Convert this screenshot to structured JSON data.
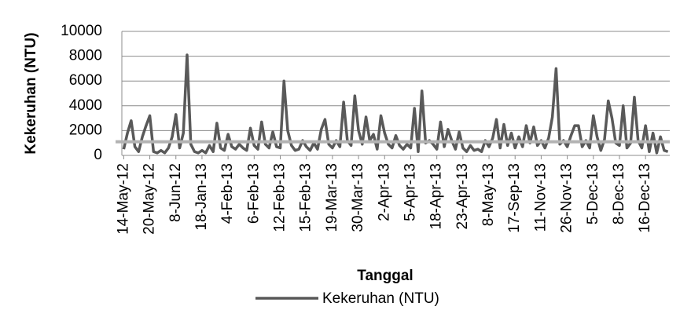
{
  "chart_data": {
    "type": "line",
    "y_label": "Kekeruhan (NTU)",
    "x_label": "Tanggal",
    "categories": [
      "14-May-12",
      null,
      null,
      null,
      null,
      null,
      null,
      "20-May-12",
      null,
      null,
      null,
      null,
      null,
      null,
      "8-Jun-12",
      null,
      null,
      null,
      null,
      null,
      null,
      "18-Jan-13",
      null,
      null,
      null,
      null,
      null,
      null,
      "4-Feb-13",
      null,
      null,
      null,
      null,
      null,
      null,
      "6-Feb-13",
      null,
      null,
      null,
      null,
      null,
      null,
      "12-Feb-13",
      null,
      null,
      null,
      null,
      null,
      null,
      "15-Feb-13",
      null,
      null,
      null,
      null,
      null,
      null,
      "19-Mar-13",
      null,
      null,
      null,
      null,
      null,
      null,
      "30-Mar-13",
      null,
      null,
      null,
      null,
      null,
      null,
      "2-Apr-13",
      null,
      null,
      null,
      null,
      null,
      null,
      "5-Apr-13",
      null,
      null,
      null,
      null,
      null,
      null,
      "18-Apr-13",
      null,
      null,
      null,
      null,
      null,
      null,
      "23-Apr-13",
      null,
      null,
      null,
      null,
      null,
      null,
      "8-May-13",
      null,
      null,
      null,
      null,
      null,
      null,
      "17-Sep-13",
      null,
      null,
      null,
      null,
      null,
      null,
      "11-Nov-13",
      null,
      null,
      null,
      null,
      null,
      null,
      "26-Nov-13",
      null,
      null,
      null,
      null,
      null,
      null,
      "5-Dec-13",
      null,
      null,
      null,
      null,
      null,
      null,
      "8-Dec-13",
      null,
      null,
      null,
      null,
      null,
      null,
      "16-Dec-13",
      null,
      null,
      null,
      null,
      null,
      null
    ],
    "series": [
      {
        "name": "Kekeruhan (NTU)",
        "color": "#595959",
        "values": [
          500,
          1800,
          2800,
          700,
          300,
          1500,
          2400,
          3200,
          300,
          200,
          400,
          200,
          600,
          1500,
          3300,
          600,
          1800,
          8100,
          900,
          300,
          200,
          400,
          200,
          800,
          300,
          2600,
          600,
          400,
          1700,
          700,
          500,
          900,
          600,
          400,
          2200,
          800,
          500,
          2700,
          900,
          600,
          1900,
          700,
          600,
          6000,
          2000,
          800,
          400,
          500,
          1200,
          700,
          400,
          1000,
          500,
          2100,
          2900,
          900,
          600,
          1200,
          700,
          4300,
          1200,
          800,
          4800,
          2000,
          900,
          3100,
          1200,
          1700,
          500,
          3200,
          1800,
          900,
          600,
          1600,
          800,
          500,
          900,
          600,
          3800,
          300,
          5200,
          1000,
          1200,
          900,
          500,
          2700,
          700,
          2100,
          1200,
          500,
          1900,
          600,
          300,
          800,
          400,
          500,
          300,
          1200,
          700,
          1400,
          2900,
          600,
          2500,
          800,
          1800,
          600,
          1500,
          700,
          2400,
          1000,
          2300,
          800,
          1200,
          600,
          1400,
          3100,
          7000,
          900,
          1200,
          700,
          1600,
          2400,
          2400,
          700,
          1200,
          600,
          3200,
          1500,
          400,
          1300,
          4400,
          3000,
          1000,
          800,
          4000,
          600,
          1000,
          4700,
          1200,
          600,
          2400,
          300,
          1800,
          200,
          1500,
          400,
          300
        ]
      }
    ],
    "reference_line": {
      "value": 1100,
      "color": "#b3b3b3"
    },
    "ylim": [
      0,
      10000
    ],
    "yticks": [
      0,
      2000,
      4000,
      6000,
      8000,
      10000
    ],
    "grid": true
  }
}
